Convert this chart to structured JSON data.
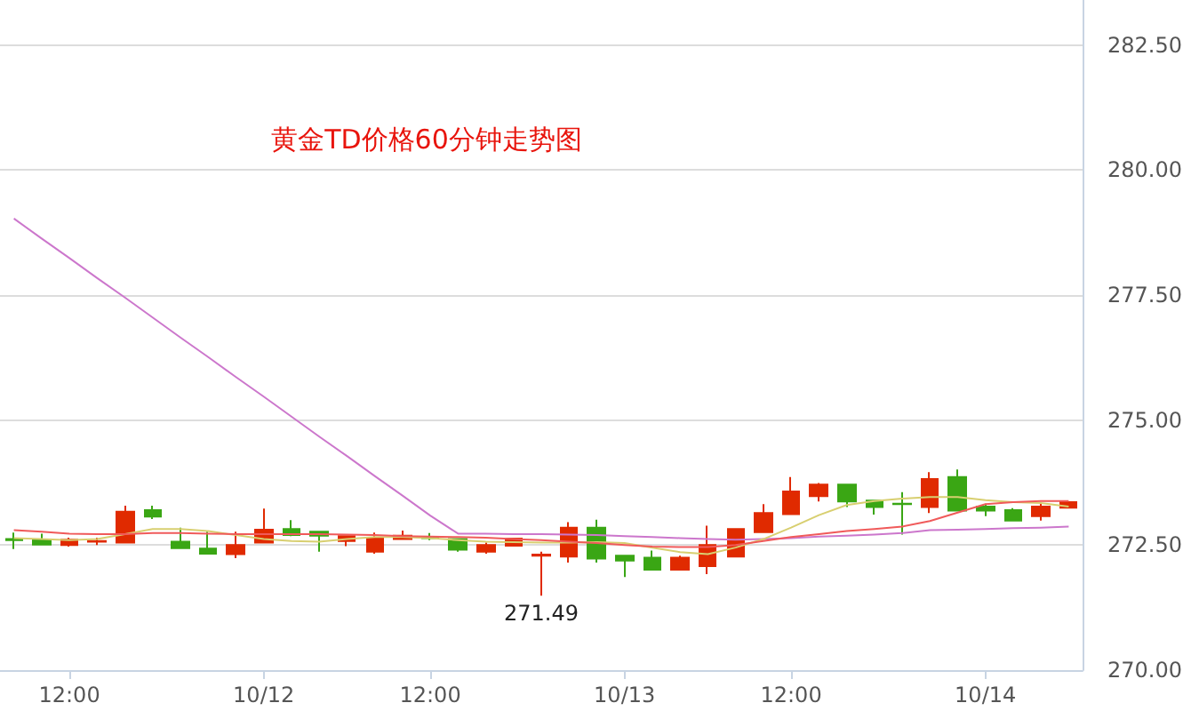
{
  "chart_data": {
    "type": "candlestick",
    "title": "黄金TD价格60分钟走势图",
    "categories": [
      null,
      null,
      "12:00",
      null,
      null,
      null,
      null,
      null,
      null,
      "10/12",
      null,
      null,
      null,
      null,
      null,
      "12:00",
      null,
      null,
      null,
      null,
      null,
      null,
      "10/13",
      null,
      null,
      null,
      null,
      null,
      "12:00",
      null,
      null,
      null,
      null,
      null,
      null,
      "10/14",
      null,
      null,
      null
    ],
    "ohlc": [
      [
        272.62,
        272.75,
        272.42,
        272.6
      ],
      [
        272.61,
        272.73,
        272.5,
        272.51
      ],
      [
        272.5,
        272.65,
        272.47,
        272.61
      ],
      [
        272.57,
        272.65,
        272.5,
        272.58
      ],
      [
        272.55,
        273.29,
        272.55,
        273.17
      ],
      [
        273.2,
        273.29,
        273.02,
        273.07
      ],
      [
        272.57,
        272.85,
        272.44,
        272.44
      ],
      [
        272.43,
        272.77,
        272.33,
        272.33
      ],
      [
        272.32,
        272.77,
        272.24,
        272.5
      ],
      [
        272.55,
        273.23,
        272.55,
        272.81
      ],
      [
        272.82,
        273.0,
        272.68,
        272.7
      ],
      [
        272.77,
        272.78,
        272.37,
        272.69
      ],
      [
        272.58,
        272.68,
        272.48,
        272.68
      ],
      [
        272.37,
        272.75,
        272.33,
        272.64
      ],
      [
        272.62,
        272.79,
        272.62,
        272.69
      ],
      [
        272.65,
        272.74,
        272.6,
        272.64
      ],
      [
        272.62,
        272.62,
        272.37,
        272.41
      ],
      [
        272.37,
        272.55,
        272.33,
        272.5
      ],
      [
        272.49,
        272.63,
        272.49,
        272.63
      ],
      [
        272.29,
        272.37,
        271.49,
        272.31
      ],
      [
        272.27,
        272.96,
        272.15,
        272.85
      ],
      [
        272.85,
        273.01,
        272.15,
        272.23
      ],
      [
        272.29,
        272.29,
        271.86,
        272.19
      ],
      [
        272.25,
        272.39,
        272.01,
        272.01
      ],
      [
        272.01,
        272.29,
        272.01,
        272.25
      ],
      [
        272.08,
        272.89,
        271.92,
        272.5
      ],
      [
        272.27,
        272.82,
        272.27,
        272.82
      ],
      [
        272.76,
        273.32,
        272.76,
        273.14
      ],
      [
        273.12,
        273.86,
        273.12,
        273.57
      ],
      [
        273.48,
        273.74,
        273.37,
        273.71
      ],
      [
        273.71,
        273.71,
        273.26,
        273.37
      ],
      [
        273.39,
        273.39,
        273.11,
        273.26
      ],
      [
        273.33,
        273.56,
        272.71,
        273.32
      ],
      [
        273.26,
        273.96,
        273.14,
        273.82
      ],
      [
        273.86,
        274.01,
        273.19,
        273.19
      ],
      [
        273.27,
        273.33,
        273.08,
        273.19
      ],
      [
        273.2,
        273.24,
        272.99,
        272.99
      ],
      [
        273.08,
        273.33,
        272.99,
        273.27
      ],
      [
        273.25,
        273.38,
        273.25,
        273.36
      ]
    ],
    "series": [
      {
        "type": "line",
        "color": "#cc77cc",
        "values": [
          279.03,
          278.63,
          278.24,
          277.84,
          277.45,
          277.05,
          276.65,
          276.26,
          275.86,
          275.47,
          275.07,
          274.67,
          274.28,
          273.88,
          273.49,
          273.09,
          272.73,
          272.73,
          272.72,
          272.72,
          272.71,
          272.7,
          272.68,
          272.66,
          272.64,
          272.62,
          272.61,
          272.62,
          272.64,
          272.67,
          272.69,
          272.71,
          272.74,
          272.8,
          272.81,
          272.82,
          272.84,
          272.85,
          272.87
        ]
      },
      {
        "type": "line",
        "color": "#d8cf70",
        "values": [
          272.64,
          272.62,
          272.6,
          272.62,
          272.72,
          272.82,
          272.82,
          272.78,
          272.7,
          272.62,
          272.58,
          272.57,
          272.62,
          272.66,
          272.66,
          272.64,
          272.6,
          272.57,
          272.56,
          272.55,
          272.55,
          272.56,
          272.54,
          272.45,
          272.36,
          272.32,
          272.45,
          272.62,
          272.85,
          273.1,
          273.3,
          273.38,
          273.43,
          273.46,
          273.46,
          273.4,
          273.36,
          273.34,
          273.27
        ]
      },
      {
        "type": "line",
        "color": "#f05a5a",
        "values": [
          272.8,
          272.77,
          272.73,
          272.72,
          272.72,
          272.74,
          272.74,
          272.73,
          272.72,
          272.72,
          272.72,
          272.72,
          272.71,
          272.7,
          272.68,
          272.67,
          272.66,
          272.65,
          272.62,
          272.6,
          272.57,
          272.54,
          272.5,
          272.47,
          272.46,
          272.46,
          272.5,
          272.58,
          272.66,
          272.72,
          272.78,
          272.82,
          272.87,
          272.98,
          273.15,
          273.32,
          273.36,
          273.38,
          273.38
        ]
      }
    ],
    "colors": [
      "#3aa614",
      "#3aa614",
      "#e02a00",
      "#e02a00",
      "#e02a00",
      "#3aa614",
      "#3aa614",
      "#3aa614",
      "#e02a00",
      "#e02a00",
      "#3aa614",
      "#3aa614",
      "#e02a00",
      "#e02a00",
      "#e02a00",
      "#3aa614",
      "#3aa614",
      "#e02a00",
      "#e02a00",
      "#e02a00",
      "#e02a00",
      "#3aa614",
      "#3aa614",
      "#3aa614",
      "#e02a00",
      "#e02a00",
      "#e02a00",
      "#e02a00",
      "#e02a00",
      "#e02a00",
      "#3aa614",
      "#3aa614",
      "#3aa614",
      "#e02a00",
      "#3aa614",
      "#3aa614",
      "#3aa614",
      "#e02a00",
      "#e02a00"
    ],
    "ylim": [
      270,
      283.4
    ],
    "yticks": [
      {
        "value": 270,
        "label": "270.00"
      },
      {
        "value": 272.5,
        "label": "272.50"
      },
      {
        "value": 275,
        "label": "275.00"
      },
      {
        "value": 277.5,
        "label": "277.50"
      },
      {
        "value": 280,
        "label": "280.00"
      },
      {
        "value": 282.5,
        "label": "282.50"
      }
    ],
    "annotations": [
      {
        "text": "271.49",
        "y": 271.49
      }
    ],
    "grid": "y",
    "marker": "none"
  }
}
